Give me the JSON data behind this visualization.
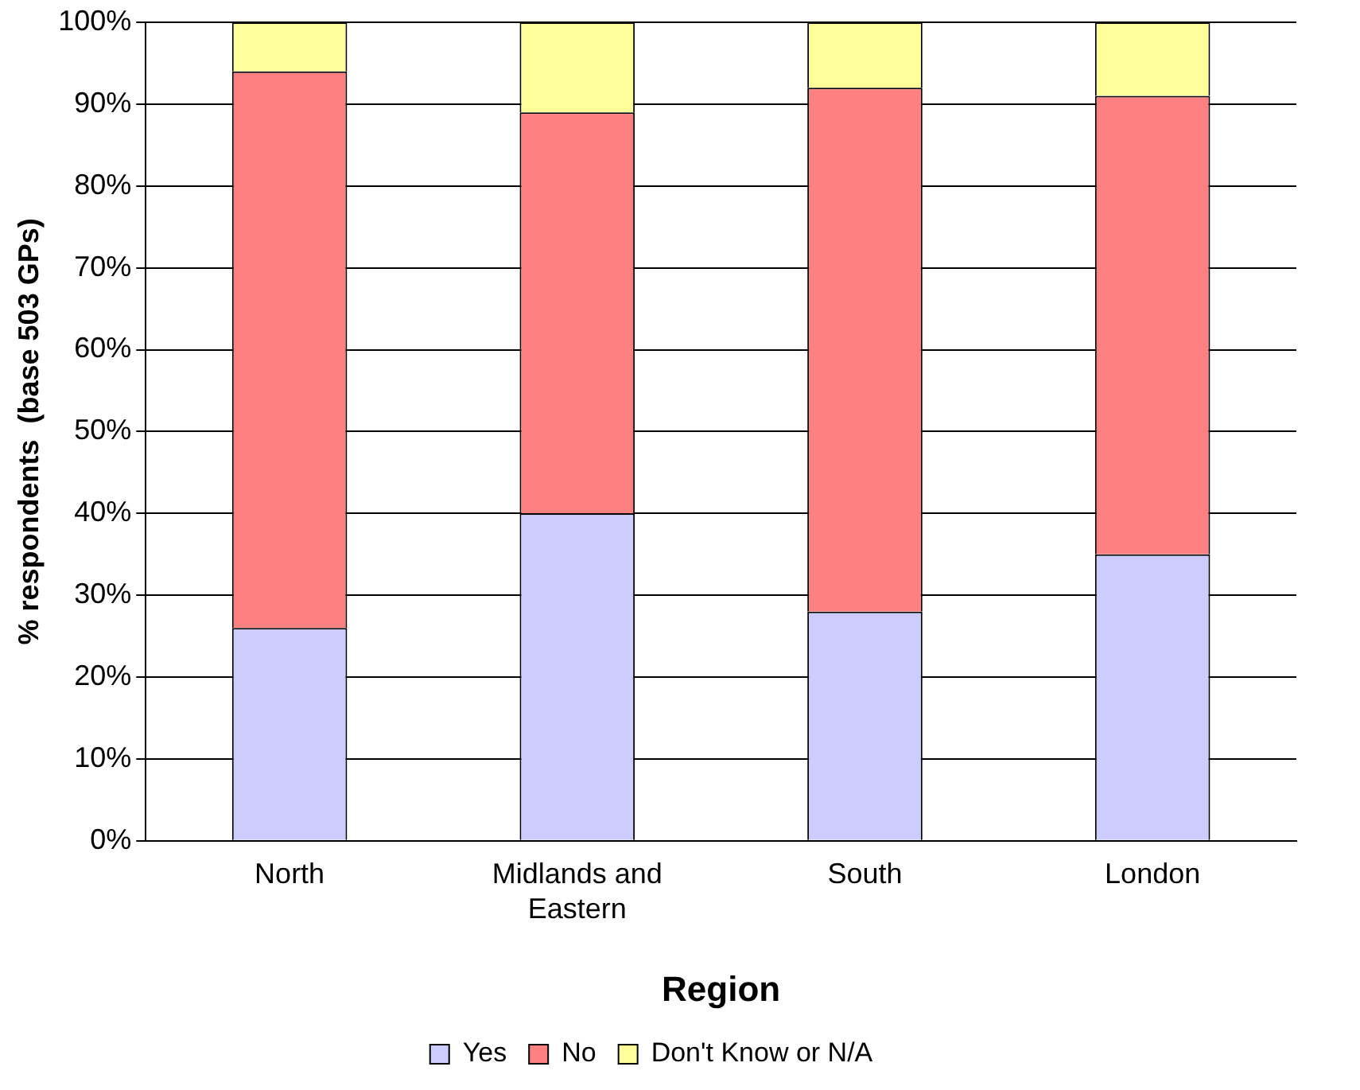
{
  "chart_data": {
    "type": "bar",
    "stacked": true,
    "xlabel": "Region",
    "ylabel": "% respondents  (base 503 GPs)",
    "categories": [
      "North",
      "Midlands and Eastern",
      "South",
      "London"
    ],
    "series": [
      {
        "name": "Yes",
        "color": "#ccccff",
        "values": [
          26,
          40,
          28,
          35
        ]
      },
      {
        "name": "No",
        "color": "#ff8080",
        "values": [
          68,
          49,
          64,
          56
        ]
      },
      {
        "name": "Don't Know or N/A",
        "color": "#ffff99",
        "values": [
          6,
          11,
          8,
          9
        ]
      }
    ],
    "ylim": [
      0,
      100
    ],
    "yticks": [
      {
        "value": 0,
        "label": "0%"
      },
      {
        "value": 10,
        "label": "10%"
      },
      {
        "value": 20,
        "label": "20%"
      },
      {
        "value": 30,
        "label": "30%"
      },
      {
        "value": 40,
        "label": "40%"
      },
      {
        "value": 50,
        "label": "50%"
      },
      {
        "value": 60,
        "label": "60%"
      },
      {
        "value": 70,
        "label": "70%"
      },
      {
        "value": 80,
        "label": "80%"
      },
      {
        "value": 90,
        "label": "90%"
      },
      {
        "value": 100,
        "label": "100%"
      }
    ],
    "grid": "y",
    "legend": "bottom"
  }
}
